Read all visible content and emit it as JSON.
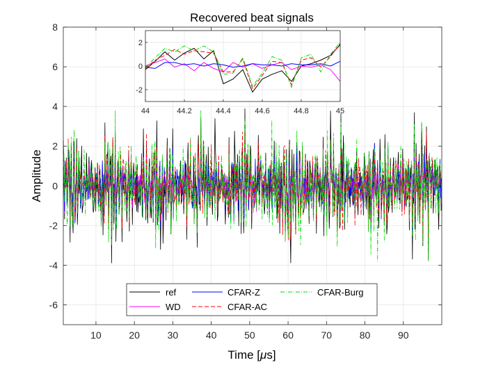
{
  "chart_data": [
    {
      "type": "line",
      "role": "main",
      "title": "Recovered beat signals",
      "xlabel_text": "Time [",
      "xlabel_symbol": "μ",
      "xlabel_unit": "s]",
      "ylabel": "Amplitude",
      "xlim": [
        1.5,
        100
      ],
      "ylim": [
        -7,
        8
      ],
      "xticks": [
        10,
        20,
        30,
        40,
        50,
        60,
        70,
        80,
        90
      ],
      "yticks": [
        -6,
        -4,
        -2,
        0,
        2,
        4,
        6,
        8
      ],
      "grid": true,
      "legend_position": "bottom-center",
      "colors": {
        "ref": "#000000",
        "WD": "#ff00ff",
        "CFAR-Z": "#0000ff",
        "CFAR-AC": "#ff0000",
        "CFAR-Burg": "#00dd00"
      },
      "series": [
        {
          "name": "ref",
          "color": "#000000",
          "style": "solid",
          "amplitude_envelope": 2.8,
          "extremes": {
            "max": 3.4,
            "min": -3.9
          }
        },
        {
          "name": "WD",
          "color": "#ff00ff",
          "style": "solid",
          "amplitude_envelope": 1.4
        },
        {
          "name": "CFAR-Z",
          "color": "#0000ff",
          "style": "solid",
          "amplitude_envelope": 1.8
        },
        {
          "name": "CFAR-AC",
          "color": "#ff0000",
          "style": "dashed",
          "amplitude_envelope": 2.2
        },
        {
          "name": "CFAR-Burg",
          "color": "#00dd00",
          "style": "dashdot",
          "amplitude_envelope": 2.6,
          "extremes": {
            "max": 3.3,
            "min": -3.8
          }
        }
      ],
      "legend": [
        "ref",
        "WD",
        "CFAR-Z",
        "CFAR-AC",
        "CFAR-Burg"
      ]
    },
    {
      "type": "line",
      "role": "inset",
      "xlim": [
        44,
        45
      ],
      "ylim": [
        -3,
        3
      ],
      "xticks": [
        44,
        44.2,
        44.4,
        44.6,
        44.8,
        45
      ],
      "xtick_labels": [
        "44",
        "44.2",
        "44.4",
        "44.6",
        "44.8",
        "45"
      ],
      "yticks": [
        -2,
        0,
        2
      ],
      "grid": true,
      "x": [
        44.0,
        44.05,
        44.1,
        44.15,
        44.2,
        44.25,
        44.3,
        44.35,
        44.4,
        44.45,
        44.5,
        44.55,
        44.6,
        44.65,
        44.7,
        44.75,
        44.8,
        44.85,
        44.9,
        44.95,
        45.0
      ],
      "series": [
        {
          "name": "ref",
          "color": "#000000",
          "style": "solid",
          "values": [
            -0.3,
            0.4,
            1.2,
            0.5,
            1.1,
            1.5,
            0.6,
            1.3,
            -1.5,
            -1.1,
            -0.3,
            -2.2,
            -1.1,
            -0.7,
            -0.4,
            -1.3,
            0.0,
            0.2,
            0.5,
            0.9,
            1.8
          ]
        },
        {
          "name": "WD",
          "color": "#ff00ff",
          "style": "solid",
          "values": [
            0.0,
            0.3,
            0.6,
            -0.1,
            0.2,
            -0.4,
            0.3,
            -0.2,
            -0.5,
            0.3,
            -0.1,
            0.2,
            -0.2,
            0.1,
            0.3,
            -0.3,
            0.0,
            -0.1,
            0.1,
            -0.3,
            -1.3
          ]
        },
        {
          "name": "CFAR-Z",
          "color": "#0000ff",
          "style": "solid",
          "values": [
            -0.1,
            -0.2,
            0.3,
            0.3,
            0.1,
            0.2,
            0.0,
            0.2,
            0.1,
            -0.1,
            0.0,
            0.2,
            0.1,
            0.1,
            0.0,
            0.2,
            0.1,
            0.1,
            0.2,
            0.0,
            0.4
          ]
        },
        {
          "name": "CFAR-AC",
          "color": "#ff0000",
          "style": "dashed",
          "values": [
            -0.2,
            0.5,
            0.9,
            1.4,
            1.0,
            1.3,
            1.2,
            1.1,
            -0.5,
            -0.5,
            0.6,
            -1.9,
            -0.8,
            0.4,
            0.3,
            -1.6,
            0.5,
            0.7,
            -0.1,
            0.8,
            1.9
          ]
        },
        {
          "name": "CFAR-Burg",
          "color": "#00dd00",
          "style": "dashdot",
          "values": [
            -0.1,
            0.7,
            1.5,
            1.2,
            1.7,
            1.3,
            1.7,
            1.2,
            -0.7,
            -0.6,
            0.7,
            -1.7,
            -0.6,
            0.8,
            0.5,
            -1.8,
            0.7,
            1.0,
            -0.5,
            1.0,
            2.0
          ]
        }
      ]
    }
  ]
}
